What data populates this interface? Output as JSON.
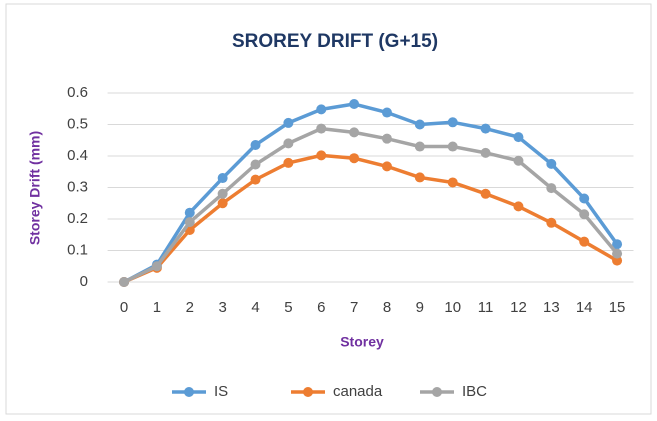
{
  "chart_data": {
    "type": "line",
    "title": "SROREY DRIFT (G+15)",
    "x_label": "Storey",
    "y_label": "Storey Drift (mm)",
    "categories": [
      "0",
      "1",
      "2",
      "3",
      "4",
      "5",
      "6",
      "7",
      "8",
      "9",
      "10",
      "11",
      "12",
      "13",
      "14",
      "15"
    ],
    "series": [
      {
        "name": "IS",
        "color": "#5b9bd5",
        "values": [
          0,
          0.055,
          0.22,
          0.33,
          0.435,
          0.505,
          0.548,
          0.565,
          0.538,
          0.5,
          0.507,
          0.487,
          0.46,
          0.375,
          0.265,
          0.12
        ]
      },
      {
        "name": "canada",
        "color": "#ed7d31",
        "values": [
          0,
          0.045,
          0.165,
          0.25,
          0.325,
          0.378,
          0.402,
          0.393,
          0.367,
          0.332,
          0.316,
          0.28,
          0.24,
          0.188,
          0.128,
          0.068
        ]
      },
      {
        "name": "IBC",
        "color": "#a5a5a5",
        "values": [
          0,
          0.05,
          0.19,
          0.28,
          0.373,
          0.44,
          0.487,
          0.475,
          0.455,
          0.43,
          0.43,
          0.41,
          0.385,
          0.298,
          0.215,
          0.09
        ]
      }
    ],
    "ylim": [
      0,
      0.6
    ],
    "yticks": [
      0,
      0.1,
      0.2,
      0.3,
      0.4,
      0.5,
      0.6
    ],
    "grid": true,
    "legend": "bottom"
  }
}
